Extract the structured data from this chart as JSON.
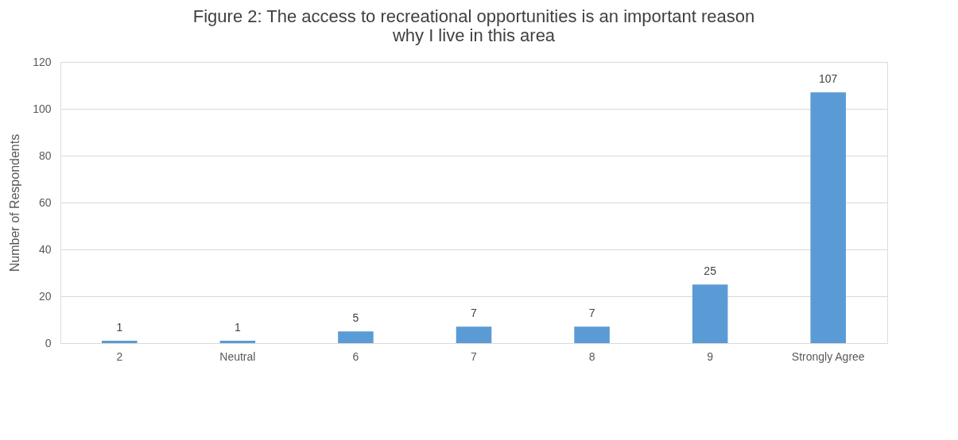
{
  "chart_data": {
    "type": "bar",
    "title": "Figure 2: The access to recreational opportunities is an important reason why I live in this area",
    "ylabel": "Number of Respondents",
    "categories": [
      "2",
      "Neutral",
      "6",
      "7",
      "8",
      "9",
      "Strongly Agree"
    ],
    "values": [
      1,
      1,
      5,
      7,
      7,
      25,
      107
    ],
    "color": "#5b9bd5",
    "ylim": [
      0,
      120
    ],
    "yticks": [
      0,
      20,
      40,
      60,
      80,
      100,
      120
    ],
    "grid": "y",
    "data_labels": true
  }
}
